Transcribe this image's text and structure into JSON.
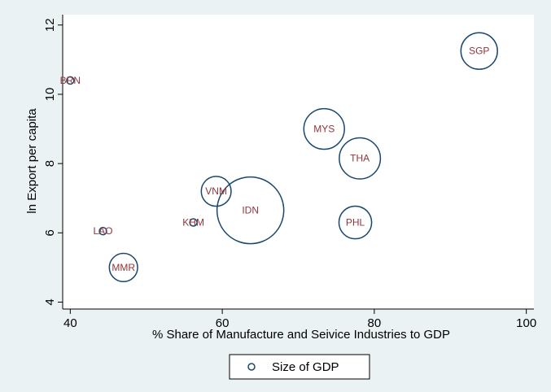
{
  "chart_data": {
    "type": "scatter",
    "title": "",
    "xlabel": "% Share of Manufacture and Seivice Industries to GDP",
    "ylabel": "ln Export per capita",
    "xlim": [
      39,
      101
    ],
    "ylim": [
      3.8,
      12.3
    ],
    "xticks": [
      40,
      60,
      80,
      100
    ],
    "yticks": [
      4,
      6,
      8,
      10,
      12
    ],
    "grid": false,
    "legend": {
      "placement": "bottom",
      "entries": [
        "Size of GDP"
      ]
    },
    "colors": {
      "background": "#eaf2f3",
      "plot_background": "#ffffff",
      "marker_stroke": "#1a476f",
      "label_text": "#90353b"
    },
    "points": [
      {
        "label": "BRN",
        "x": 40.0,
        "y": 10.4,
        "size": 0.4
      },
      {
        "label": "LAO",
        "x": 44.3,
        "y": 6.05,
        "size": 0.4
      },
      {
        "label": "MMR",
        "x": 47.0,
        "y": 5.0,
        "size": 18
      },
      {
        "label": "KHM",
        "x": 56.2,
        "y": 6.3,
        "size": 0.9
      },
      {
        "label": "VNM",
        "x": 59.2,
        "y": 7.2,
        "size": 20
      },
      {
        "label": "IDN",
        "x": 63.7,
        "y": 6.65,
        "size": 100
      },
      {
        "label": "MYS",
        "x": 73.4,
        "y": 9.0,
        "size": 37
      },
      {
        "label": "THA",
        "x": 78.1,
        "y": 8.15,
        "size": 38
      },
      {
        "label": "PHL",
        "x": 77.5,
        "y": 6.3,
        "size": 24
      },
      {
        "label": "SGP",
        "x": 93.8,
        "y": 11.25,
        "size": 30
      }
    ]
  }
}
